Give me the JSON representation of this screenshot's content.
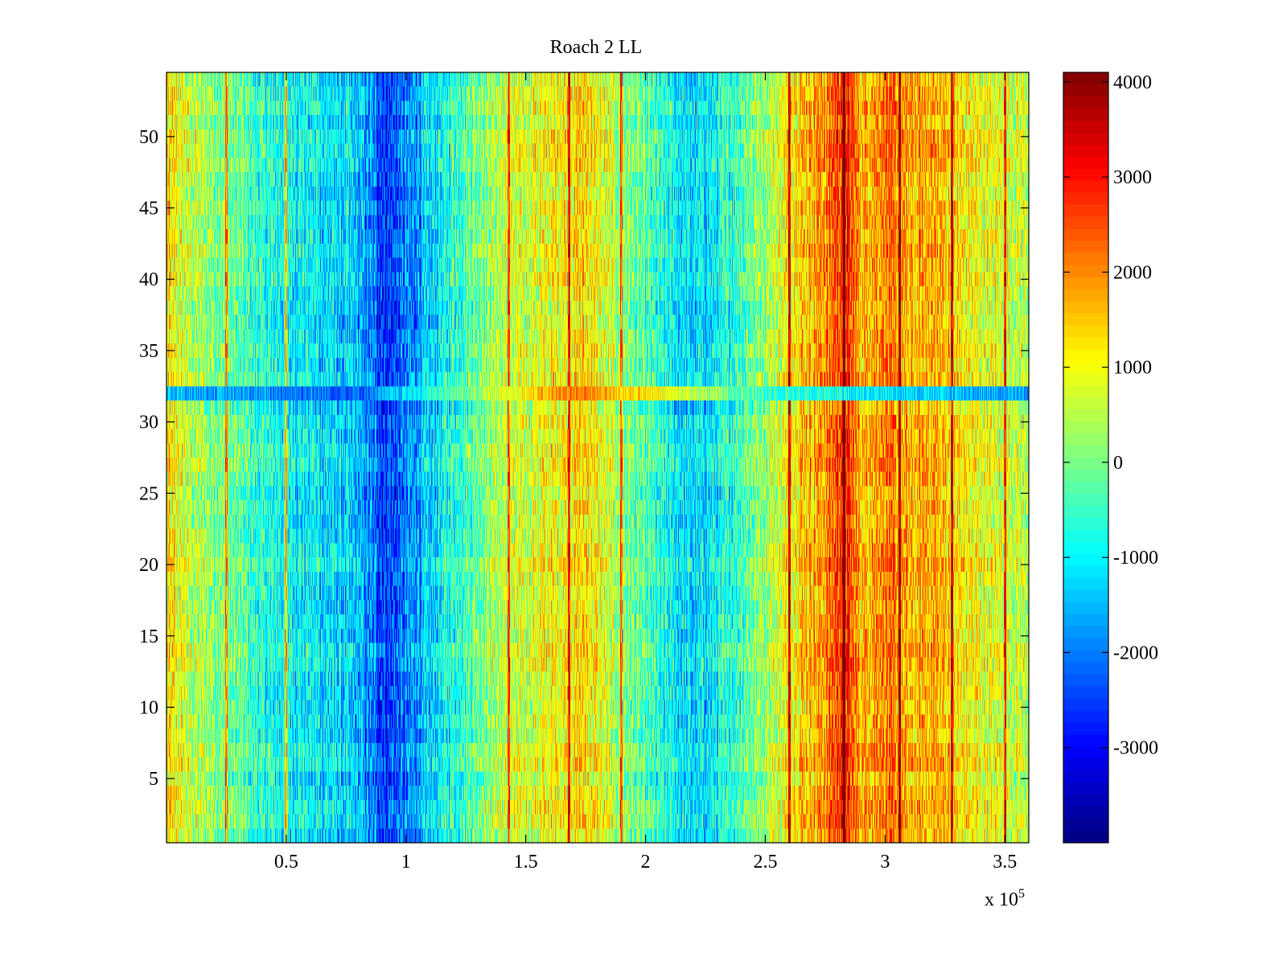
{
  "chart_data": {
    "type": "heatmap",
    "title": "Roach 2 LL",
    "xlabel": "",
    "ylabel": "",
    "x_exponent_label": "x 10",
    "x_exponent_power": "5",
    "xlim": [
      0,
      3.6
    ],
    "ylim": [
      0.5,
      54.5
    ],
    "x_ticks": [
      0.5,
      1,
      1.5,
      2,
      2.5,
      3,
      3.5
    ],
    "x_tick_labels": [
      "0.5",
      "1",
      "1.5",
      "2",
      "2.5",
      "3",
      "3.5"
    ],
    "y_ticks": [
      5,
      10,
      15,
      20,
      25,
      30,
      35,
      40,
      45,
      50
    ],
    "y_tick_labels": [
      "5",
      "10",
      "15",
      "20",
      "25",
      "30",
      "35",
      "40",
      "45",
      "50"
    ],
    "rows": 54,
    "colormap": "jet",
    "colorbar": {
      "range": [
        -4000,
        4100
      ],
      "ticks": [
        -3000,
        -2000,
        -1000,
        0,
        1000,
        2000,
        3000,
        4000
      ],
      "tick_labels": [
        "-3000",
        "-2000",
        "-1000",
        "0",
        "1000",
        "2000",
        "3000",
        "4000"
      ]
    },
    "column_profile": [
      {
        "x": 0.0,
        "value": 1200
      },
      {
        "x": 0.1,
        "value": 500
      },
      {
        "x": 0.25,
        "value": 0
      },
      {
        "x": 0.4,
        "value": -700
      },
      {
        "x": 0.6,
        "value": -1000
      },
      {
        "x": 0.8,
        "value": -1500
      },
      {
        "x": 0.92,
        "value": -2600
      },
      {
        "x": 1.05,
        "value": -1700
      },
      {
        "x": 1.2,
        "value": -600
      },
      {
        "x": 1.35,
        "value": 300
      },
      {
        "x": 1.5,
        "value": 700
      },
      {
        "x": 1.65,
        "value": 1100
      },
      {
        "x": 1.75,
        "value": 1300
      },
      {
        "x": 1.9,
        "value": 200
      },
      {
        "x": 2.05,
        "value": -700
      },
      {
        "x": 2.2,
        "value": -1300
      },
      {
        "x": 2.3,
        "value": -1000
      },
      {
        "x": 2.45,
        "value": 0
      },
      {
        "x": 2.55,
        "value": 700
      },
      {
        "x": 2.65,
        "value": 1500
      },
      {
        "x": 2.75,
        "value": 1900
      },
      {
        "x": 2.83,
        "value": 3000
      },
      {
        "x": 2.9,
        "value": 1600
      },
      {
        "x": 3.0,
        "value": 2200
      },
      {
        "x": 3.1,
        "value": 1500
      },
      {
        "x": 3.2,
        "value": 1800
      },
      {
        "x": 3.3,
        "value": 1200
      },
      {
        "x": 3.45,
        "value": 800
      },
      {
        "x": 3.6,
        "value": 600
      }
    ],
    "vertical_streaks_x": [
      0.25,
      0.5,
      1.43,
      1.68,
      1.9,
      2.6,
      2.83,
      3.06,
      3.28,
      3.5
    ],
    "anomalous_row": {
      "y": 32,
      "value_profile": [
        {
          "x": 0.0,
          "value": -1500
        },
        {
          "x": 0.8,
          "value": -2200
        },
        {
          "x": 1.7,
          "value": 2200
        },
        {
          "x": 2.5,
          "value": -500
        },
        {
          "x": 3.6,
          "value": -1800
        }
      ]
    }
  }
}
